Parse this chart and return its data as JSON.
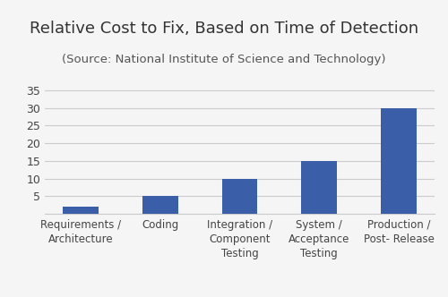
{
  "title": "Relative Cost to Fix, Based on Time of Detection",
  "subtitle": "(Source: National Institute of Science and Technology)",
  "categories": [
    "Requirements /\nArchitecture",
    "Coding",
    "Integration /\nComponent\nTesting",
    "System /\nAcceptance\nTesting",
    "Production /\nPost- Release"
  ],
  "values": [
    2,
    5,
    10,
    15,
    30
  ],
  "bar_color": "#3A5EA8",
  "ylim": [
    0,
    37
  ],
  "yticks": [
    0,
    5,
    10,
    15,
    20,
    25,
    30,
    35
  ],
  "background_color": "#f5f5f5",
  "title_fontsize": 13,
  "subtitle_fontsize": 9.5,
  "tick_label_fontsize": 8.5,
  "ytick_fontsize": 9
}
